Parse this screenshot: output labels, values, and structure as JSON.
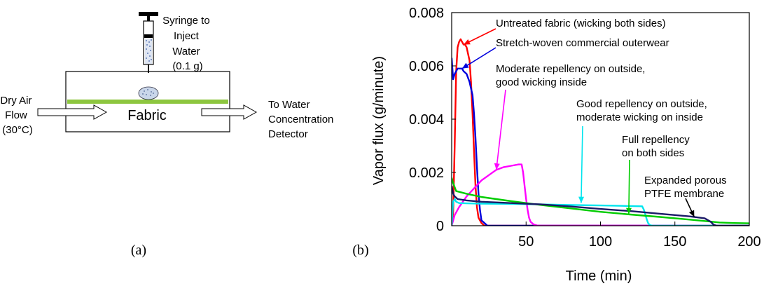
{
  "diagram": {
    "panel_label": "(a)",
    "syringe_label": [
      "Syringe to",
      "Inject",
      "Water",
      "(0.1 g)"
    ],
    "inlet_label": [
      "Dry Air",
      "Flow",
      "(30°C)"
    ],
    "fabric_label": "Fabric",
    "outlet_label": [
      "To Water",
      "Concentration",
      "Detector"
    ],
    "colors": {
      "fabric": "#8dc63f",
      "droplet": "#c9d6ea",
      "arrow_fill": "#ffffff"
    }
  },
  "chart_data": {
    "type": "line",
    "panel_label": "(b)",
    "xlabel": "Time (min)",
    "ylabel": "Vapor flux (g/minute)",
    "xlim": [
      0,
      200
    ],
    "ylim": [
      0,
      0.008
    ],
    "xticks": [
      50,
      100,
      150,
      200
    ],
    "xtick_labels": [
      "50",
      "100",
      "150",
      "200"
    ],
    "yticks": [
      0,
      0.002,
      0.004,
      0.006,
      0.008
    ],
    "ytick_labels": [
      "0",
      "0.002",
      "0.004",
      "0.006",
      "0.008"
    ],
    "grid": false,
    "series": [
      {
        "name": "Untreated fabric (wicking both sides)",
        "color": "#ff0000",
        "x": [
          0,
          1,
          2,
          3,
          4,
          5,
          6,
          7,
          8,
          9,
          10,
          12,
          13,
          14,
          15,
          16,
          17,
          18,
          20,
          22,
          200
        ],
        "y": [
          0,
          0.0005,
          0.003,
          0.0058,
          0.0067,
          0.0069,
          0.007,
          0.0069,
          0.0068,
          0.0068,
          0.0067,
          0.0062,
          0.0054,
          0.0042,
          0.0028,
          0.0015,
          0.0007,
          0.0003,
          0.0001,
          0,
          0
        ]
      },
      {
        "name": "Stretch-woven commercial outerwear",
        "color": "#0000dd",
        "x": [
          0,
          1,
          2,
          3,
          4,
          5,
          6,
          7,
          8,
          10,
          12,
          14,
          15,
          16,
          17,
          18,
          19,
          20,
          22,
          24,
          200
        ],
        "y": [
          0.0063,
          0.0055,
          0.0057,
          0.0058,
          0.0059,
          0.0059,
          0.0059,
          0.0059,
          0.0058,
          0.0057,
          0.0054,
          0.0049,
          0.0042,
          0.0033,
          0.0022,
          0.0012,
          0.0006,
          0.0002,
          0.0001,
          0,
          0
        ]
      },
      {
        "name": "Moderate repellency on outside, good wicking inside",
        "color": "#ff00ff",
        "x": [
          0,
          2,
          5,
          10,
          15,
          20,
          25,
          30,
          35,
          40,
          45,
          47,
          48,
          49,
          50,
          51,
          52,
          53,
          55,
          58,
          65,
          200
        ],
        "y": [
          0,
          0.0004,
          0.0007,
          0.0011,
          0.0014,
          0.0017,
          0.0019,
          0.0021,
          0.0022,
          0.00225,
          0.0023,
          0.0023,
          0.002,
          0.0015,
          0.001,
          0.0006,
          0.0003,
          0.00015,
          5e-05,
          0,
          0,
          0
        ]
      },
      {
        "name": "Good repellency on outside, moderate wicking on inside",
        "color": "#00e5ee",
        "x": [
          0,
          1,
          2,
          3,
          5,
          10,
          20,
          40,
          60,
          80,
          100,
          120,
          128,
          129,
          130,
          131,
          132,
          133,
          135,
          200
        ],
        "y": [
          0,
          0.0009,
          0.001,
          0.0009,
          0.00085,
          0.00084,
          0.00083,
          0.00082,
          0.0008,
          0.00078,
          0.00076,
          0.00074,
          0.00073,
          0.00062,
          0.00045,
          0.00025,
          0.0001,
          3e-05,
          0,
          0
        ]
      },
      {
        "name": "Full repellency on both sides",
        "color": "#00cc00",
        "x": [
          0,
          1,
          3,
          10,
          20,
          40,
          60,
          80,
          100,
          120,
          140,
          160,
          175,
          180,
          190,
          200
        ],
        "y": [
          0.0018,
          0.0016,
          0.0013,
          0.0012,
          0.00108,
          0.00092,
          0.00078,
          0.00065,
          0.00052,
          0.00042,
          0.00033,
          0.00023,
          0.00015,
          0.00012,
          0.0001,
          9e-05
        ]
      },
      {
        "name": "Expanded porous PTFE membrane",
        "color": "#1a1a66",
        "x": [
          0,
          1,
          2,
          4,
          10,
          20,
          40,
          60,
          80,
          100,
          120,
          140,
          160,
          170,
          174,
          176,
          178,
          200
        ],
        "y": [
          0.0015,
          0.0012,
          0.0011,
          0.001,
          0.00095,
          0.0009,
          0.00085,
          0.0008,
          0.00072,
          0.00063,
          0.00055,
          0.00045,
          0.00035,
          0.00028,
          0.00015,
          4e-05,
          0,
          0
        ]
      }
    ],
    "annotations": [
      {
        "lines": [
          "Untreated fabric (wicking both sides)"
        ],
        "color": "#ff0000",
        "target": [
          8,
          0.0068
        ]
      },
      {
        "lines": [
          "Stretch-woven commercial outerwear"
        ],
        "color": "#0000dd",
        "target": [
          7,
          0.0059
        ]
      },
      {
        "lines": [
          "Moderate repellency on outside,",
          "good wicking inside"
        ],
        "color": "#ff00ff",
        "target": [
          30,
          0.0021
        ]
      },
      {
        "lines": [
          "Good repellency on outside,",
          "moderate wicking on inside"
        ],
        "color": "#00e5ee",
        "target": [
          87,
          0.00085
        ]
      },
      {
        "lines": [
          "Full repellency",
          "on both sides"
        ],
        "color": "#00cc00",
        "target": [
          119,
          0.00043
        ]
      },
      {
        "lines": [
          "Expanded porous",
          "PTFE membrane"
        ],
        "color": "#000000",
        "target": [
          163,
          0.00033
        ]
      }
    ]
  }
}
